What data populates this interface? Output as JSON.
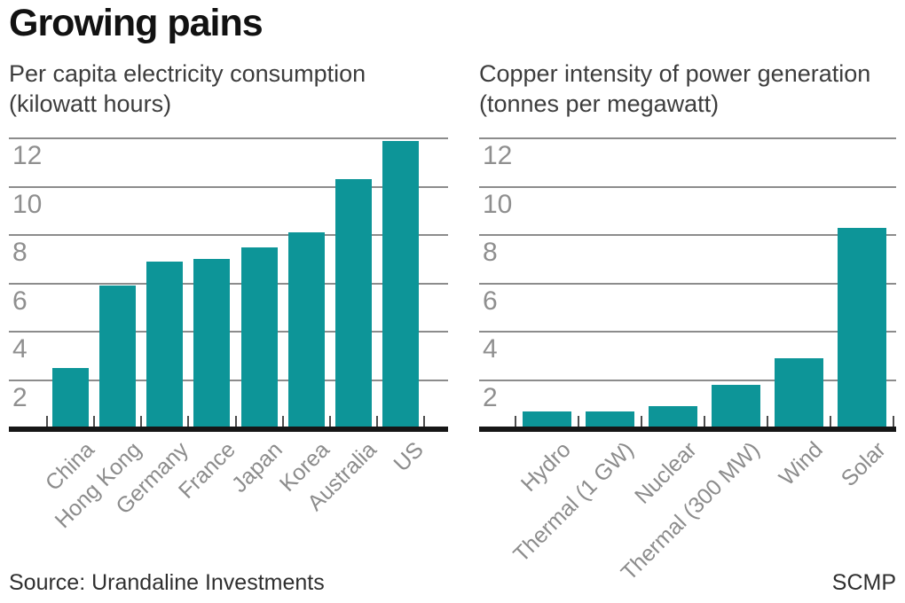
{
  "header": {
    "title": "Growing pains"
  },
  "footer": {
    "source": "Source: Urandaline Investments",
    "credit": "SCMP"
  },
  "colors": {
    "bar": "#0d9598",
    "gridline": "#8c8c8c",
    "axis": "#161616",
    "tick": "#4d4d4d",
    "y_tick_label": "#8f8f8f",
    "category_label": "#8c8c8c"
  },
  "chart_data": [
    {
      "type": "bar",
      "title": "Per capita electricity consumption",
      "unit_label": "(kilowatt hours)",
      "categories": [
        "China",
        "Hong Kong",
        "Germany",
        "France",
        "Japan",
        "Korea",
        "Australia",
        "US"
      ],
      "values": [
        2.5,
        5.9,
        6.9,
        7.0,
        7.5,
        8.1,
        10.3,
        11.9
      ],
      "yticks": [
        2,
        4,
        6,
        8,
        10,
        12
      ],
      "ylim": [
        0,
        12
      ],
      "grid": true,
      "legend": "none",
      "bar_color": "#0d9598"
    },
    {
      "type": "bar",
      "title": "Copper intensity of power generation",
      "unit_label": "(tonnes per megawatt)",
      "categories": [
        "Hydro",
        "Thermal (1 GW)",
        "Nuclear",
        "Thermal (300 MW)",
        "Wind",
        "Solar"
      ],
      "values": [
        0.7,
        0.7,
        0.9,
        1.8,
        2.9,
        8.3
      ],
      "yticks": [
        2,
        4,
        6,
        8,
        10,
        12
      ],
      "ylim": [
        0,
        12
      ],
      "grid": true,
      "legend": "none",
      "bar_color": "#0d9598"
    }
  ]
}
